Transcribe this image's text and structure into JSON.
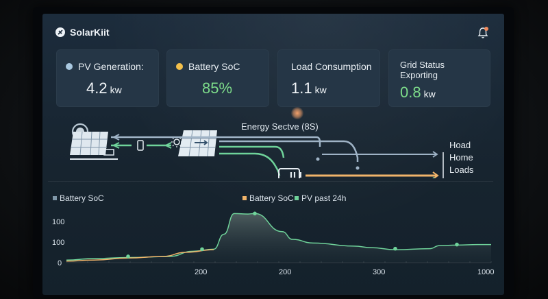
{
  "app": {
    "name": "SolarKiit"
  },
  "notifications": {
    "has_unread": true
  },
  "cards": [
    {
      "label": "PV Generation:",
      "value": "4.2",
      "unit": "kw",
      "dot_color": "#a9c8e0"
    },
    {
      "label": "Battery SoC",
      "value": "85%",
      "unit": "",
      "dot_color": "#f3c04b"
    },
    {
      "label": "Load Consumption",
      "value": "1.1",
      "unit": "kw",
      "dot_color": ""
    },
    {
      "label_line1": "Grid Status",
      "label_line2": "Exporting",
      "value": "0.8",
      "unit": "kw"
    }
  ],
  "flow": {
    "title": "Energy Sectve (8S)",
    "loads": [
      "Hoad",
      "Home",
      "Loads"
    ],
    "colors": {
      "pv_flow": "#6fd39a",
      "grid_flow": "#f1b46a",
      "return_flow": "#9fb3c6"
    }
  },
  "chart_data": {
    "type": "area",
    "legend": [
      {
        "label": "Battery SoC",
        "color": "#7f97a8"
      },
      {
        "label": "Battery SoC",
        "color": "#f1b46a"
      },
      {
        "label": "PV past 24h",
        "color": "#6fd39a"
      }
    ],
    "y_tick_labels": [
      "100",
      "100",
      "0"
    ],
    "x_tick_labels": [
      "200",
      "200",
      "300",
      "1000"
    ],
    "series": [
      {
        "name": "PV past 24h",
        "color": "#6fd39a",
        "x": [
          0,
          40,
          90,
          150,
          185,
          215,
          230,
          245,
          265,
          275,
          315,
          330,
          360,
          420,
          445,
          480,
          530,
          545,
          570,
          600,
          620
        ],
        "y": [
          5,
          8,
          10,
          12,
          22,
          26,
          55,
          95,
          94,
          95,
          60,
          45,
          38,
          32,
          29,
          25,
          27,
          33,
          34,
          35,
          35
        ]
      },
      {
        "name": "Battery SoC",
        "color": "#f1b46a",
        "x": [
          0,
          40,
          90,
          140,
          175,
          215
        ],
        "y": [
          3,
          5,
          9,
          12,
          20,
          25
        ]
      }
    ],
    "markers": [
      {
        "x": 90,
        "y": 12
      },
      {
        "x": 198,
        "y": 26
      },
      {
        "x": 275,
        "y": 95
      },
      {
        "x": 480,
        "y": 27
      },
      {
        "x": 570,
        "y": 35
      }
    ],
    "xlim": [
      0,
      620
    ],
    "ylim": [
      0,
      110
    ]
  }
}
